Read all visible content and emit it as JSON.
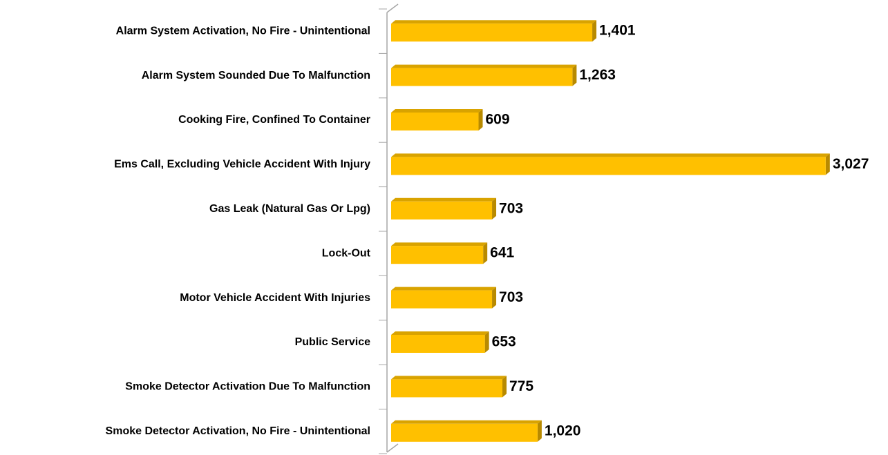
{
  "chart_data": {
    "type": "bar",
    "orientation": "horizontal",
    "categories": [
      "Alarm System Activation, No Fire - Unintentional",
      "Alarm System Sounded Due To Malfunction",
      "Cooking Fire, Confined To Container",
      "Ems Call, Excluding Vehicle Accident With Injury",
      "Gas Leak (Natural Gas Or Lpg)",
      "Lock-Out",
      "Motor Vehicle Accident With Injuries",
      "Public Service",
      "Smoke Detector Activation Due To Malfunction",
      "Smoke Detector Activation, No Fire - Unintentional"
    ],
    "values": [
      1401,
      1263,
      609,
      3027,
      703,
      641,
      703,
      653,
      775,
      1020
    ],
    "value_labels": [
      "1,401",
      "1,263",
      "609",
      "3,027",
      "703",
      "641",
      "703",
      "653",
      "775",
      "1,020"
    ],
    "color": "#FFC000",
    "xlim": [
      0,
      3100
    ]
  }
}
